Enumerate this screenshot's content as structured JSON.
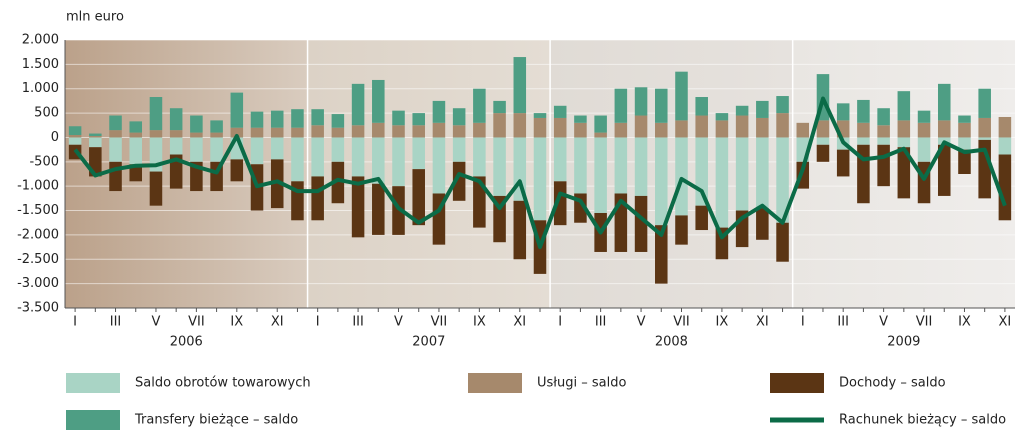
{
  "chart_data": {
    "type": "bar",
    "stacked": true,
    "y_label": "mln euro",
    "categories": [
      "I",
      null,
      "III",
      null,
      "V",
      null,
      "VII",
      null,
      "IX",
      null,
      "XI",
      null,
      "I",
      null,
      "III",
      null,
      "V",
      null,
      "VII",
      null,
      "IX",
      null,
      "XI",
      null,
      "I",
      null,
      "III",
      null,
      "V",
      null,
      "VII",
      null,
      "IX",
      null,
      "XI",
      null,
      "I",
      null,
      "III",
      null,
      "V",
      null,
      "VII",
      null,
      "IX",
      null,
      "XI"
    ],
    "years": [
      "2006",
      "2007",
      "2008",
      "2009"
    ],
    "ylim": [
      -3500,
      2000
    ],
    "yticks": [
      {
        "value": 2000,
        "label": "2.000"
      },
      {
        "value": 1500,
        "label": "1.500"
      },
      {
        "value": 1000,
        "label": "1.000"
      },
      500,
      0,
      -500,
      {
        "value": -1000,
        "label": "-1.000"
      },
      {
        "value": -1500,
        "label": "-1.500"
      },
      {
        "value": -2000,
        "label": "-2.000"
      },
      {
        "value": -2500,
        "label": "-2.500"
      },
      {
        "value": -3000,
        "label": "-3.000"
      },
      {
        "value": -3500,
        "label": "-3.500"
      }
    ],
    "grid": true,
    "series": [
      {
        "name": "Saldo obrotów towarowych",
        "color": "#a9d4c5",
        "values": [
          -150,
          -200,
          -500,
          -550,
          -700,
          -350,
          -500,
          -500,
          -450,
          -550,
          -450,
          -900,
          -800,
          -500,
          -800,
          -950,
          -1000,
          -650,
          -1150,
          -500,
          -800,
          -1200,
          -1300,
          -1700,
          -900,
          -1150,
          -1550,
          -1150,
          -1200,
          -1800,
          -1600,
          -1400,
          -1850,
          -1500,
          -1450,
          -1750,
          -500,
          -150,
          -250,
          -150,
          -150,
          -200,
          -500,
          -150,
          -250,
          -50,
          -350
        ]
      },
      {
        "name": "Usługi – saldo",
        "color": "#a6896c",
        "values": [
          50,
          30,
          150,
          100,
          150,
          150,
          100,
          100,
          200,
          200,
          200,
          200,
          250,
          200,
          250,
          300,
          250,
          250,
          300,
          250,
          300,
          500,
          500,
          400,
          400,
          300,
          100,
          300,
          450,
          300,
          350,
          450,
          350,
          450,
          400,
          500,
          300,
          350,
          350,
          300,
          250,
          350,
          300,
          350,
          300,
          400,
          420
        ]
      },
      {
        "name": "Dochody – saldo",
        "color": "#5b3514",
        "values": [
          -300,
          -600,
          -600,
          -350,
          -700,
          -700,
          -600,
          -600,
          -450,
          -950,
          -1000,
          -800,
          -900,
          -850,
          -1250,
          -1050,
          -1000,
          -1150,
          -1050,
          -800,
          -1050,
          -950,
          -1200,
          -1100,
          -900,
          -600,
          -800,
          -1200,
          -1150,
          -1200,
          -600,
          -500,
          -650,
          -750,
          -650,
          -800,
          -550,
          -350,
          -550,
          -1200,
          -850,
          -1050,
          -850,
          -1050,
          -500,
          -1200,
          -1350
        ]
      },
      {
        "name": "Transfery bieżące – saldo",
        "color": "#4e9e84",
        "values": [
          180,
          50,
          300,
          230,
          680,
          450,
          350,
          250,
          720,
          330,
          350,
          380,
          330,
          280,
          850,
          880,
          300,
          250,
          450,
          350,
          700,
          250,
          1150,
          100,
          250,
          150,
          350,
          700,
          580,
          700,
          1000,
          380,
          150,
          200,
          350,
          350,
          0,
          950,
          350,
          470,
          350,
          600,
          250,
          750,
          150,
          600,
          0
        ]
      },
      {
        "name": "Rachunek bieżący – saldo",
        "color": "#0b6b47",
        "type": "line",
        "values": [
          -250,
          -780,
          -650,
          -580,
          -570,
          -450,
          -600,
          -720,
          30,
          -1000,
          -900,
          -1100,
          -1100,
          -870,
          -950,
          -850,
          -1450,
          -1750,
          -1500,
          -750,
          -900,
          -1450,
          -900,
          -2250,
          -1150,
          -1300,
          -1950,
          -1300,
          -1650,
          -2000,
          -850,
          -1100,
          -2050,
          -1650,
          -1400,
          -1750,
          -650,
          800,
          -100,
          -450,
          -400,
          -230,
          -850,
          -100,
          -300,
          -250,
          -1400
        ]
      }
    ]
  }
}
